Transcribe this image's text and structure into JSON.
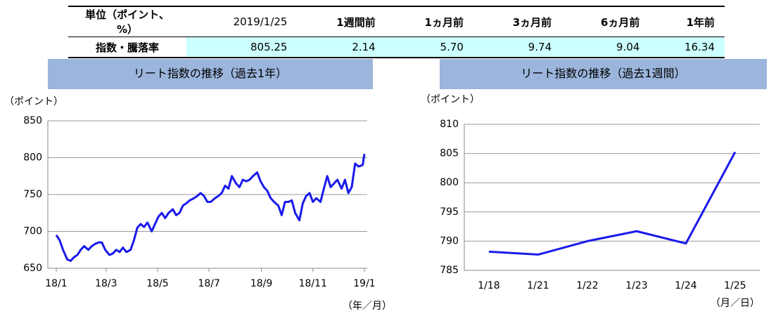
{
  "table": {
    "header": [
      "単位（ポイント、%）",
      "2019/1/25",
      "1週間前",
      "1ヵ月前",
      "3ヵ月前",
      "6ヵ月前",
      "1年前"
    ],
    "rows": [
      [
        "指数・騰落率",
        "805.25",
        "2.14",
        "5.70",
        "9.74",
        "9.04",
        "16.34"
      ]
    ]
  },
  "chart_data": [
    {
      "type": "line",
      "title": "リート指数の推移（過去1年）",
      "y_label": "（ポイント）",
      "x_label": "（年／月）",
      "x": [
        0,
        4,
        8,
        13,
        17,
        21,
        25,
        29,
        33,
        38,
        42,
        46,
        50,
        54,
        58,
        63,
        67,
        71,
        75,
        79,
        83,
        88,
        92,
        96,
        100,
        104,
        108,
        113,
        117,
        121,
        125,
        129,
        133,
        138,
        142,
        146,
        150,
        154,
        158,
        163,
        167,
        171,
        175,
        179,
        183,
        188,
        192,
        196,
        200,
        204,
        208,
        213,
        217,
        221,
        225,
        229,
        233,
        238,
        242,
        246,
        250,
        254,
        258,
        263,
        267,
        271,
        275,
        279,
        283,
        288,
        292,
        296,
        300,
        304,
        308,
        313,
        317,
        321,
        325,
        329,
        333,
        338,
        342,
        346,
        350,
        354,
        358,
        363,
        365
      ],
      "series": [
        {
          "name": "リート指数",
          "color": "#1a1aeb",
          "values": [
            695,
            688,
            675,
            662,
            660,
            665,
            668,
            675,
            680,
            675,
            680,
            683,
            685,
            685,
            675,
            668,
            670,
            675,
            672,
            678,
            672,
            675,
            688,
            705,
            710,
            706,
            712,
            700,
            710,
            720,
            725,
            718,
            725,
            730,
            722,
            725,
            735,
            738,
            742,
            745,
            748,
            752,
            748,
            740,
            740,
            745,
            748,
            752,
            762,
            758,
            775,
            765,
            760,
            770,
            768,
            770,
            775,
            780,
            768,
            760,
            755,
            745,
            740,
            735,
            722,
            740,
            740,
            742,
            725,
            715,
            738,
            748,
            752,
            740,
            745,
            740,
            758,
            775,
            760,
            765,
            770,
            758,
            770,
            752,
            760,
            792,
            788,
            790,
            805
          ]
        }
      ],
      "xlim": [
        0,
        365
      ],
      "xticks": [
        {
          "value": 0,
          "label": "18/1"
        },
        {
          "value": 59,
          "label": "18/3"
        },
        {
          "value": 120,
          "label": "18/5"
        },
        {
          "value": 181,
          "label": "18/7"
        },
        {
          "value": 243,
          "label": "18/9"
        },
        {
          "value": 304,
          "label": "18/11"
        },
        {
          "value": 365,
          "label": "19/1"
        }
      ],
      "ylim": [
        650,
        850
      ],
      "yticks": [
        650,
        700,
        750,
        800,
        850
      ],
      "grid": true
    },
    {
      "type": "line",
      "title": "リート指数の推移（過去1週間）",
      "y_label": "（ポイント）",
      "x_label": "（月／日）",
      "categories": [
        "1/18",
        "1/21",
        "1/22",
        "1/23",
        "1/24",
        "1/25"
      ],
      "series": [
        {
          "name": "リート指数",
          "color": "#1a1aeb",
          "values": [
            788.2,
            787.7,
            790.0,
            791.7,
            789.6,
            805.25
          ]
        }
      ],
      "ylim": [
        785,
        810
      ],
      "yticks": [
        785,
        790,
        795,
        800,
        805,
        810
      ],
      "grid": true
    }
  ]
}
